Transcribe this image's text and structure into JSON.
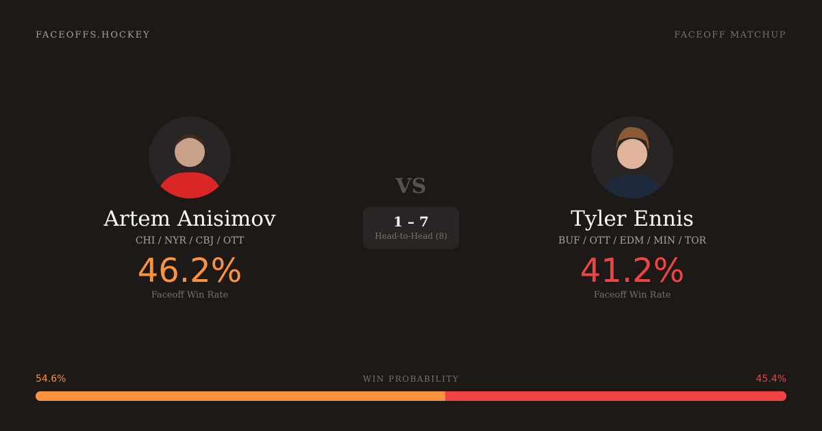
{
  "header": {
    "brand": "FACEOFFS.HOCKEY",
    "tag": "FACEOFF MATCHUP"
  },
  "colors": {
    "background": "#1c1917",
    "player1": "#fb923c",
    "player2": "#ef4444"
  },
  "player1": {
    "name": "Artem Anisimov",
    "teams": "CHI / NYR / CBJ / OTT",
    "rate": "46.2%",
    "rate_label": "Faceoff Win Rate",
    "jersey": "red"
  },
  "player2": {
    "name": "Tyler Ennis",
    "teams": "BUF / OTT / EDM / MIN / TOR",
    "rate": "41.2%",
    "rate_label": "Faceoff Win Rate",
    "jersey": "navy"
  },
  "matchup": {
    "vs": "VS",
    "score": "1 – 7",
    "h2h_label": "Head-to-Head (8)"
  },
  "win_probability": {
    "label": "WIN PROBABILITY",
    "player1": "54.6%",
    "player2": "45.4%",
    "player1_value": 54.6,
    "player2_value": 45.4
  }
}
